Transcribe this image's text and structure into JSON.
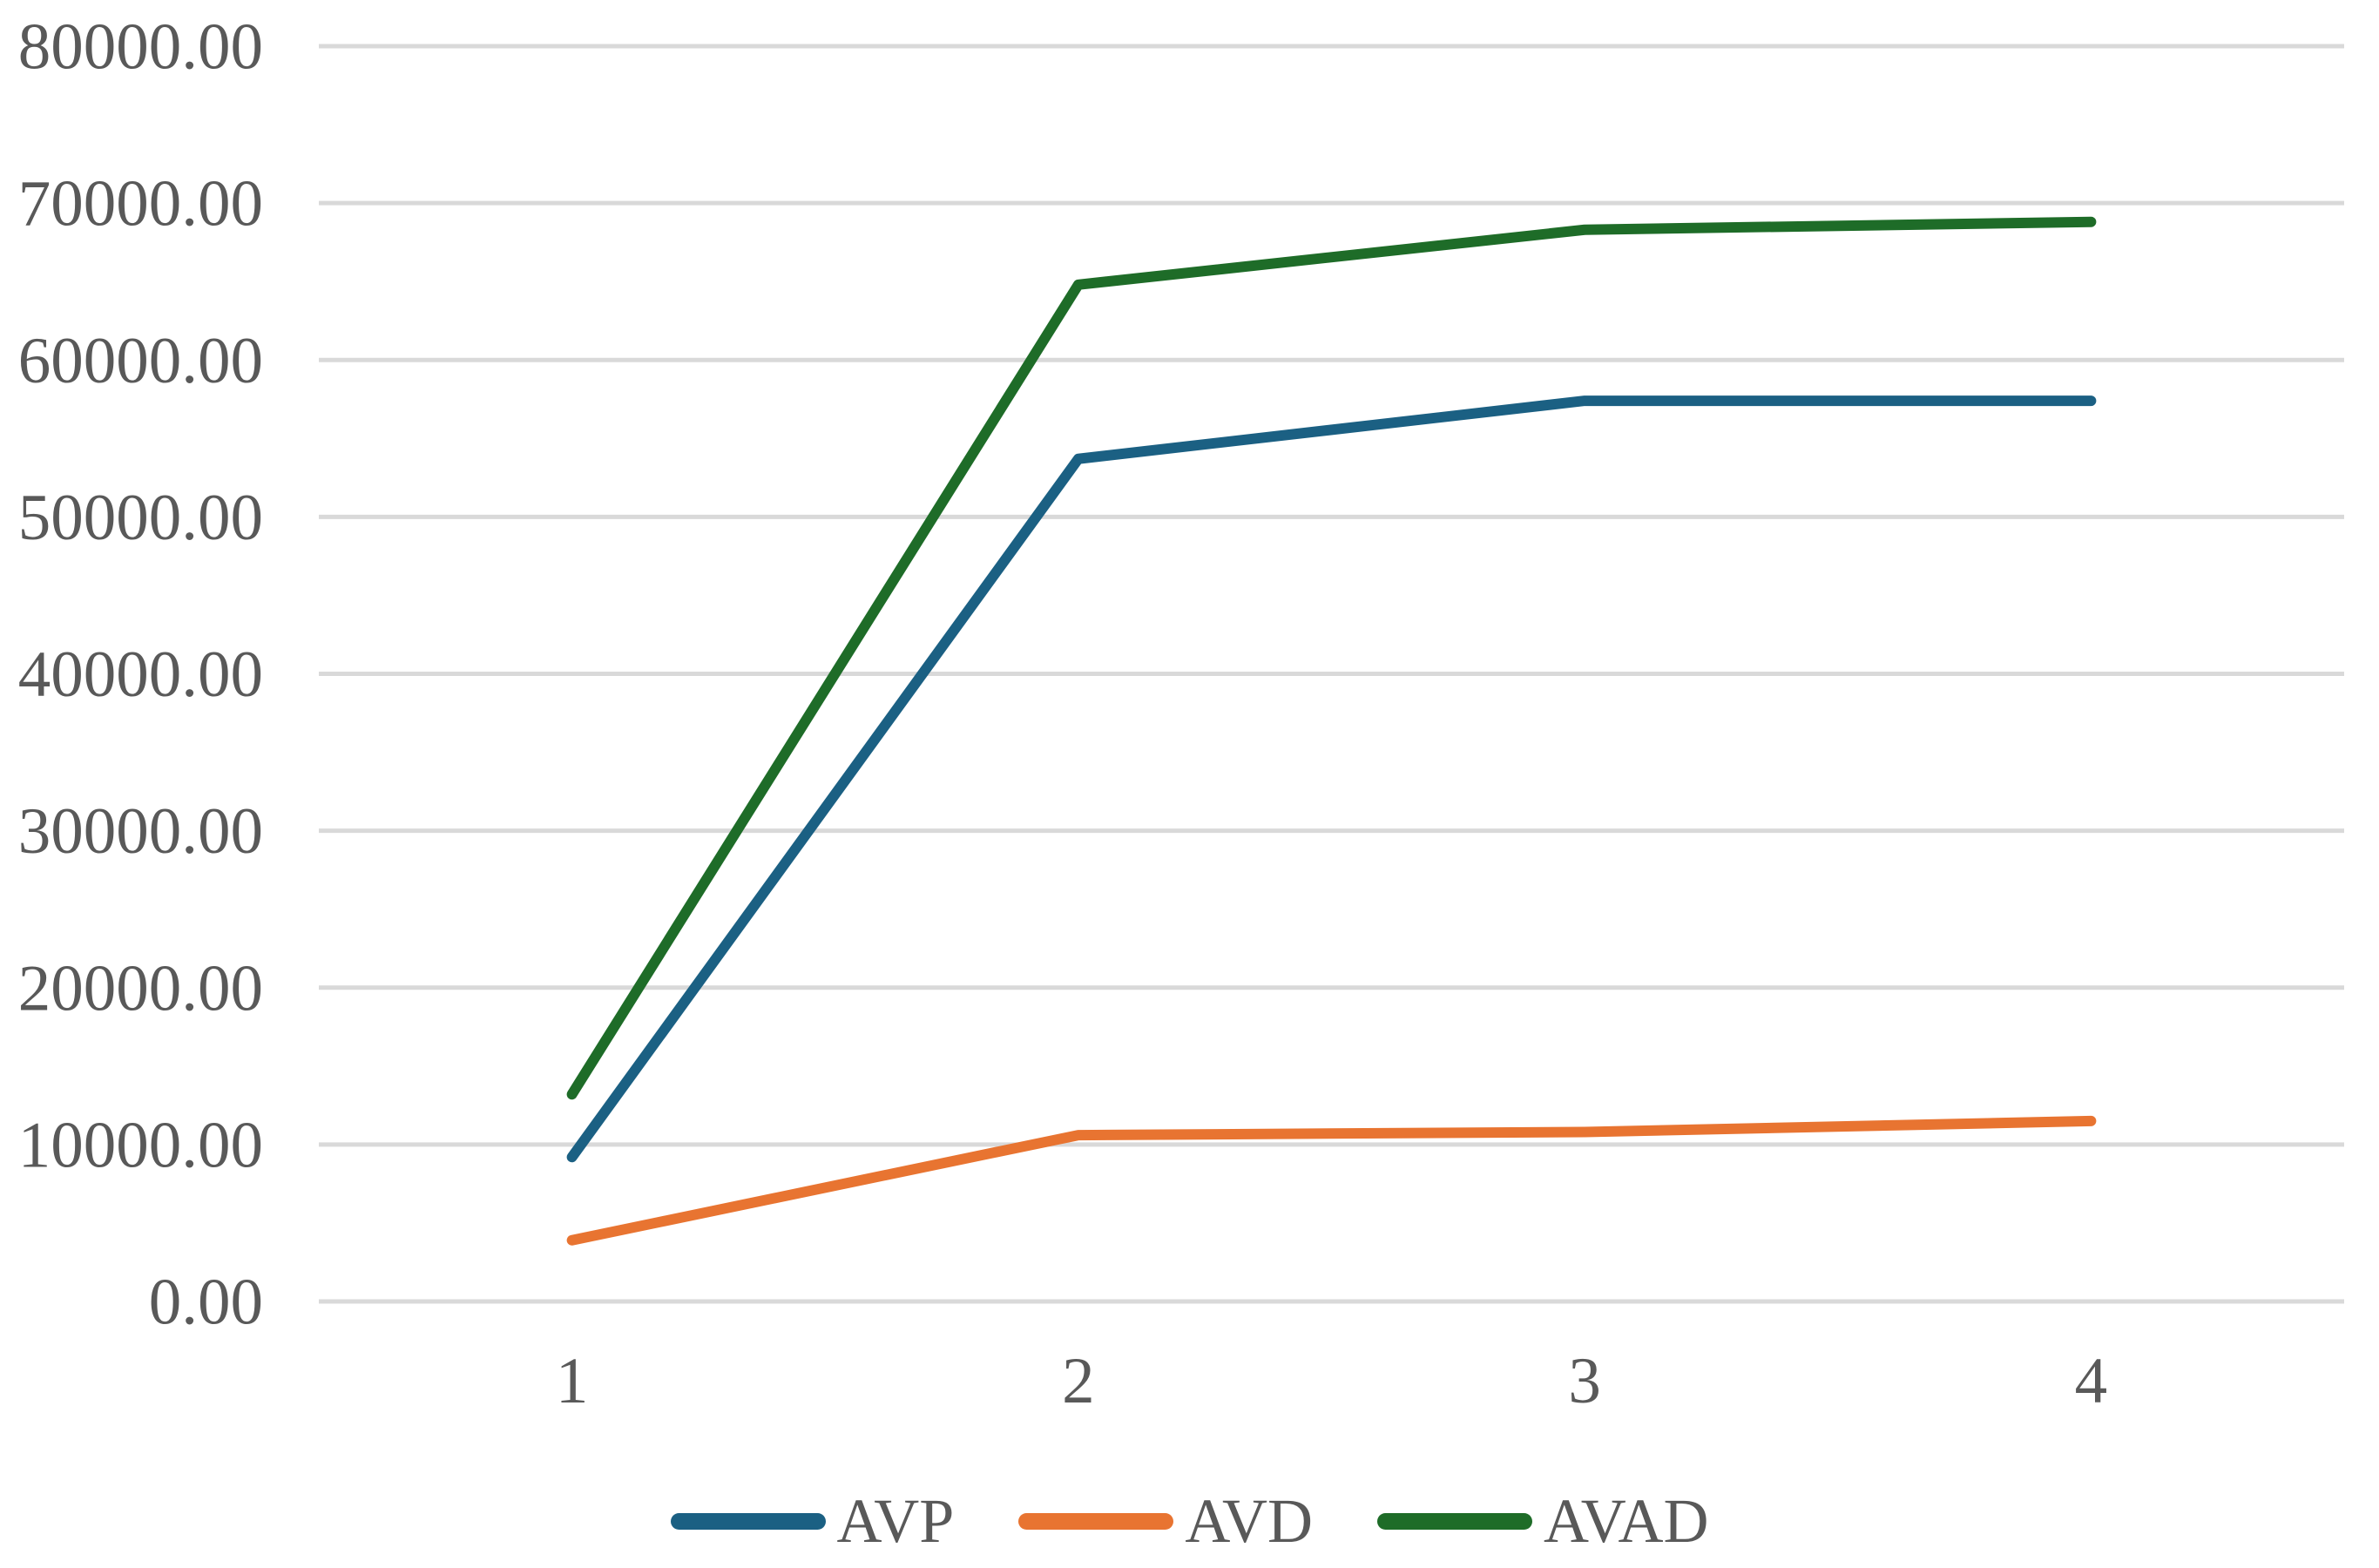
{
  "chart_data": {
    "type": "line",
    "title": "",
    "xlabel": "",
    "ylabel": "",
    "x": [
      1,
      2,
      3,
      4
    ],
    "x_tick_labels": [
      "1",
      "2",
      "3",
      "4"
    ],
    "y_tick_labels": [
      "0.00",
      "10000.00",
      "20000.00",
      "30000.00",
      "40000.00",
      "50000.00",
      "60000.00",
      "70000.00",
      "80000.00"
    ],
    "ylim": [
      0,
      80000
    ],
    "y_step": 10000,
    "grid": "horizontal-gridlines-on",
    "legend_position": "bottom-center",
    "series": [
      {
        "name": "AVP",
        "color": "#1B6083",
        "values": [
          9200,
          53700,
          57400,
          57400
        ]
      },
      {
        "name": "AVD",
        "color": "#E87431",
        "values": [
          3900,
          10600,
          10800,
          11500
        ]
      },
      {
        "name": "AVAD",
        "color": "#1E6C28",
        "values": [
          13200,
          64800,
          68300,
          68800
        ]
      }
    ],
    "colors": {
      "gridline": "#D9D9D9",
      "tick_text": "#595959",
      "background": "#FFFFFF"
    }
  }
}
